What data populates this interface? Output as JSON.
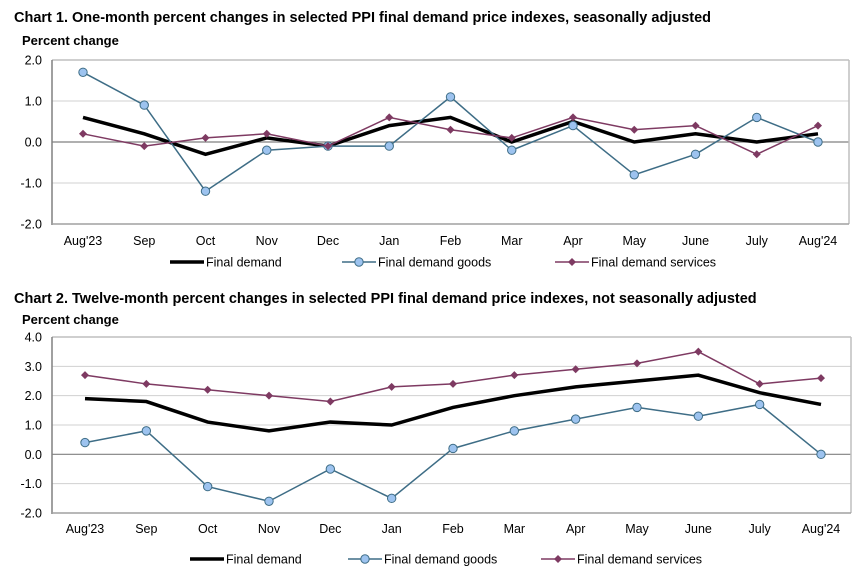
{
  "colors": {
    "final_demand": "#000000",
    "goods_line": "#3e6d86",
    "goods_marker": "#9dc3ef",
    "services": "#7e3a62",
    "gridline": "#d0d0d0",
    "zeroline": "#808080",
    "frame": "#bfbfbf"
  },
  "chart_data": [
    {
      "type": "line",
      "title": "Chart 1. One-month percent changes in selected PPI final demand price indexes, seasonally adjusted",
      "xlabel": "",
      "ylabel": "Percent change",
      "ylim": [
        -2.0,
        2.0
      ],
      "yticks": [
        "2.0",
        "1.0",
        "0.0",
        "-1.0",
        "-2.0"
      ],
      "ytick_values": [
        2.0,
        1.0,
        0.0,
        -1.0,
        -2.0
      ],
      "grid": true,
      "legend_position": "bottom",
      "categories": [
        "Aug'23",
        "Sep",
        "Oct",
        "Nov",
        "Dec",
        "Jan",
        "Feb",
        "Mar",
        "Apr",
        "May",
        "June",
        "July",
        "Aug'24"
      ],
      "series": [
        {
          "name": "Final demand",
          "key": "final_demand",
          "marker": "none",
          "values": [
            0.6,
            0.2,
            -0.3,
            0.1,
            -0.1,
            0.4,
            0.6,
            0.0,
            0.5,
            0.0,
            0.2,
            0.0,
            0.2
          ]
        },
        {
          "name": "Final demand goods",
          "key": "goods",
          "marker": "circle",
          "values": [
            1.7,
            0.9,
            -1.2,
            -0.2,
            -0.1,
            -0.1,
            1.1,
            -0.2,
            0.4,
            -0.8,
            -0.3,
            0.6,
            0.0
          ]
        },
        {
          "name": "Final demand services",
          "key": "services",
          "marker": "diamond",
          "values": [
            0.2,
            -0.1,
            0.1,
            0.2,
            -0.1,
            0.6,
            0.3,
            0.1,
            0.6,
            0.3,
            0.4,
            -0.3,
            0.4
          ]
        }
      ]
    },
    {
      "type": "line",
      "title": "Chart 2. Twelve-month percent changes in selected PPI final demand price indexes, not seasonally adjusted",
      "xlabel": "",
      "ylabel": "Percent change",
      "ylim": [
        -2.0,
        4.0
      ],
      "yticks": [
        "4.0",
        "3.0",
        "2.0",
        "1.0",
        "0.0",
        "-1.0",
        "-2.0"
      ],
      "ytick_values": [
        4.0,
        3.0,
        2.0,
        1.0,
        0.0,
        -1.0,
        -2.0
      ],
      "grid": true,
      "legend_position": "bottom",
      "categories": [
        "Aug'23",
        "Sep",
        "Oct",
        "Nov",
        "Dec",
        "Jan",
        "Feb",
        "Mar",
        "Apr",
        "May",
        "June",
        "July",
        "Aug'24"
      ],
      "series": [
        {
          "name": "Final demand",
          "key": "final_demand",
          "marker": "none",
          "values": [
            1.9,
            1.8,
            1.1,
            0.8,
            1.1,
            1.0,
            1.6,
            2.0,
            2.3,
            2.5,
            2.7,
            2.1,
            1.7
          ]
        },
        {
          "name": "Final demand goods",
          "key": "goods",
          "marker": "circle",
          "values": [
            0.4,
            0.8,
            -1.1,
            -1.6,
            -0.5,
            -1.5,
            0.2,
            0.8,
            1.2,
            1.6,
            1.3,
            1.7,
            0.0
          ]
        },
        {
          "name": "Final demand services",
          "key": "services",
          "marker": "diamond",
          "values": [
            2.7,
            2.4,
            2.2,
            2.0,
            1.8,
            2.3,
            2.4,
            2.7,
            2.9,
            3.1,
            3.5,
            2.4,
            2.6
          ]
        }
      ]
    }
  ]
}
